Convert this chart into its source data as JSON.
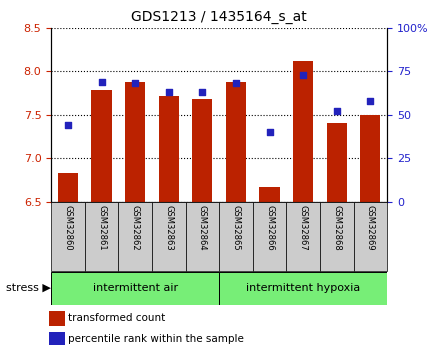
{
  "title": "GDS1213 / 1435164_s_at",
  "samples": [
    "GSM32860",
    "GSM32861",
    "GSM32862",
    "GSM32863",
    "GSM32864",
    "GSM32865",
    "GSM32866",
    "GSM32867",
    "GSM32868",
    "GSM32869"
  ],
  "bar_values": [
    6.83,
    7.78,
    7.88,
    7.72,
    7.68,
    7.88,
    6.67,
    8.12,
    7.4,
    7.5
  ],
  "percentile_values": [
    44,
    69,
    68,
    63,
    63,
    68,
    40,
    73,
    52,
    58
  ],
  "ylim_left": [
    6.5,
    8.5
  ],
  "ylim_right": [
    0,
    100
  ],
  "bar_color": "#bb2200",
  "dot_color": "#2222bb",
  "bar_bottom": 6.5,
  "group1_label": "intermittent air",
  "group2_label": "intermittent hypoxia",
  "stress_label": "stress",
  "legend1": "transformed count",
  "legend2": "percentile rank within the sample",
  "yticks_left": [
    6.5,
    7.0,
    7.5,
    8.0,
    8.5
  ],
  "yticks_right": [
    0,
    25,
    50,
    75,
    100
  ],
  "ytick_labels_right": [
    "0",
    "25",
    "50",
    "75",
    "100%"
  ],
  "tick_label_color_left": "#cc2200",
  "tick_label_color_right": "#2222cc",
  "group_bg_color": "#77ee77",
  "sample_bg_color": "#cccccc"
}
